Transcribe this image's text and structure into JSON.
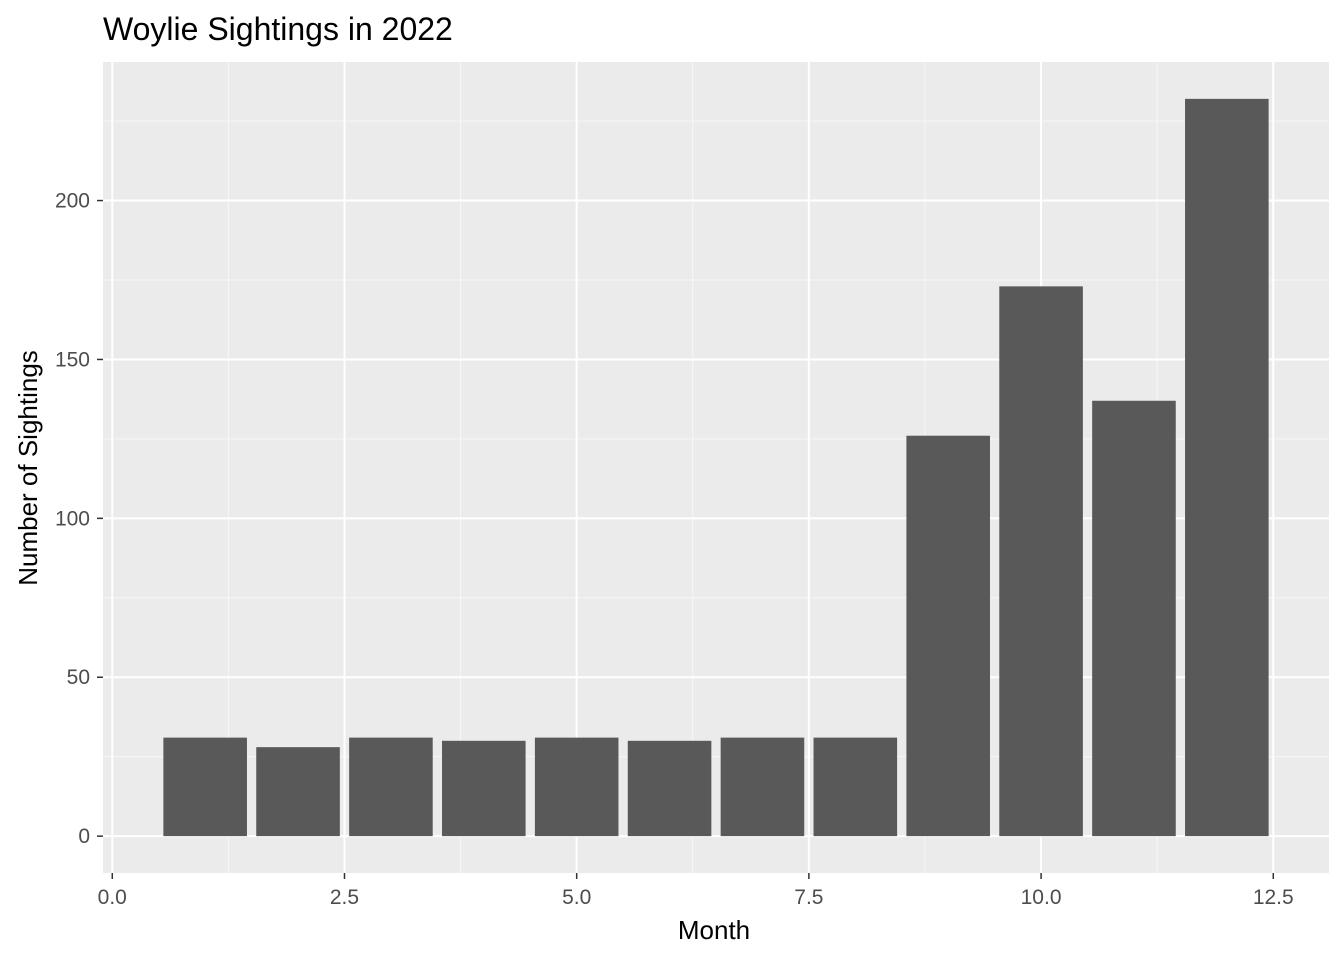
{
  "chart_data": {
    "type": "bar",
    "title": "Woylie Sightings in 2022",
    "xlabel": "Month",
    "ylabel": "Number of Sightings",
    "x": [
      1,
      2,
      3,
      4,
      5,
      6,
      7,
      8,
      9,
      10,
      11,
      12
    ],
    "values": [
      31,
      28,
      31,
      30,
      31,
      30,
      31,
      31,
      126,
      173,
      137,
      232
    ],
    "xlim": [
      -0.1,
      13.1
    ],
    "ylim": [
      -11.6,
      243.6
    ],
    "x_ticks": [
      {
        "value": 0,
        "label": "0.0"
      },
      {
        "value": 2.5,
        "label": "2.5"
      },
      {
        "value": 5,
        "label": "5.0"
      },
      {
        "value": 7.5,
        "label": "7.5"
      },
      {
        "value": 10,
        "label": "10.0"
      },
      {
        "value": 12.5,
        "label": "12.5"
      }
    ],
    "y_ticks": [
      {
        "value": 0,
        "label": "0"
      },
      {
        "value": 50,
        "label": "50"
      },
      {
        "value": 100,
        "label": "100"
      },
      {
        "value": 150,
        "label": "150"
      },
      {
        "value": 200,
        "label": "200"
      }
    ],
    "bar_width": 0.9,
    "grid": true,
    "colors": {
      "panel": "#ebebeb",
      "grid_major": "#ffffff",
      "grid_minor": "#f7f7f7",
      "bar": "#595959",
      "tick": "#333333"
    }
  }
}
